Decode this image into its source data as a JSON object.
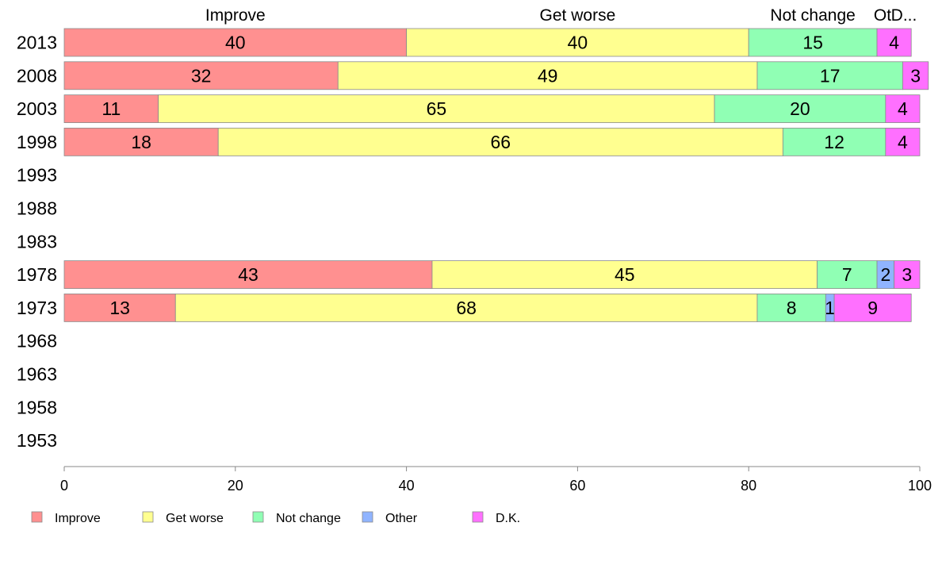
{
  "chart_data": {
    "type": "bar",
    "orientation": "horizontal",
    "stacked": true,
    "categories": [
      "2013",
      "2008",
      "2003",
      "1998",
      "1993",
      "1988",
      "1983",
      "1978",
      "1973",
      "1968",
      "1963",
      "1958",
      "1953"
    ],
    "series": [
      {
        "name": "Improve",
        "color": "#ff9090",
        "values": [
          40,
          32,
          11,
          18,
          null,
          null,
          null,
          43,
          13,
          null,
          null,
          null,
          null
        ]
      },
      {
        "name": "Get worse",
        "color": "#ffff90",
        "values": [
          40,
          49,
          65,
          66,
          null,
          null,
          null,
          45,
          68,
          null,
          null,
          null,
          null
        ]
      },
      {
        "name": "Not change",
        "color": "#90ffb4",
        "values": [
          15,
          17,
          20,
          12,
          null,
          null,
          null,
          7,
          8,
          null,
          null,
          null,
          null
        ]
      },
      {
        "name": "Other",
        "color": "#90b4ff",
        "values": [
          0,
          0,
          0,
          0,
          null,
          null,
          null,
          2,
          1,
          null,
          null,
          null,
          null
        ]
      },
      {
        "name": "D.K.",
        "color": "#ff70ff",
        "values": [
          4,
          3,
          4,
          4,
          null,
          null,
          null,
          3,
          9,
          null,
          null,
          null,
          null
        ]
      }
    ],
    "column_headers": [
      "Improve",
      "Get worse",
      "Not change",
      "Ot",
      "D..."
    ],
    "xlim": [
      0,
      100
    ],
    "xticks": [
      "0",
      "20",
      "40",
      "60",
      "80",
      "100"
    ],
    "grid": false,
    "legend_position": "bottom"
  }
}
